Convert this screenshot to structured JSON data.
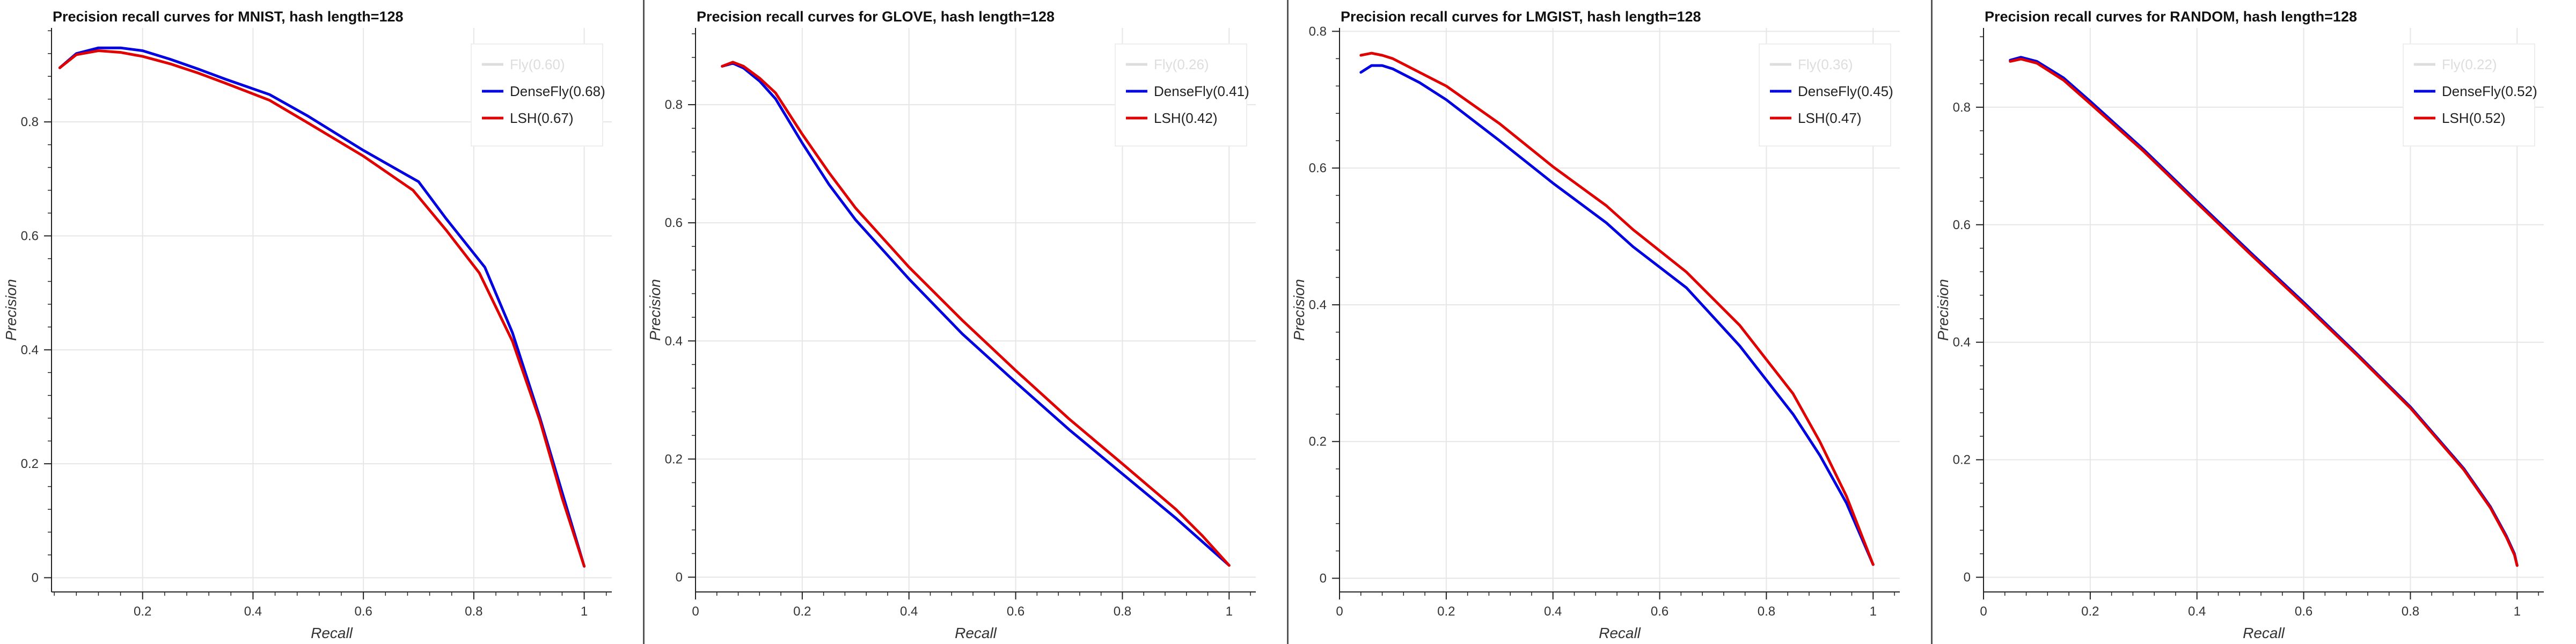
{
  "colors": {
    "densefly": "#0000e0",
    "lsh": "#e00000",
    "fly": "#dddddd",
    "grid": "#e6e6e6",
    "axis": "#222222",
    "divider": "#555555"
  },
  "chart_data": [
    {
      "type": "line",
      "title": "Precision recall curves for MNIST, hash length=128",
      "xlabel": "Recall",
      "ylabel": "Precision",
      "xlim": [
        0.035,
        1.05
      ],
      "ylim": [
        -0.025,
        0.965
      ],
      "xticks": [
        0.2,
        0.4,
        0.6,
        0.8,
        1.0
      ],
      "xtick_labels": [
        "0.2",
        "0.4",
        "0.6",
        "0.8",
        "1"
      ],
      "yticks": [
        0,
        0.2,
        0.4,
        0.6,
        0.8
      ],
      "ytick_labels": [
        "0",
        "0.2",
        "0.4",
        "0.6",
        "0.8"
      ],
      "grid": true,
      "legend_position": "top-right",
      "series": [
        {
          "name": "Fly(0.60)",
          "key": "fly",
          "x": [],
          "y": []
        },
        {
          "name": "DenseFly(0.68)",
          "key": "densefly",
          "x": [
            0.05,
            0.08,
            0.12,
            0.16,
            0.2,
            0.25,
            0.3,
            0.35,
            0.43,
            0.5,
            0.6,
            0.7,
            0.75,
            0.82,
            0.87,
            0.92,
            0.96,
            1.0
          ],
          "y": [
            0.895,
            0.92,
            0.93,
            0.93,
            0.925,
            0.91,
            0.893,
            0.875,
            0.848,
            0.81,
            0.75,
            0.695,
            0.63,
            0.545,
            0.43,
            0.28,
            0.15,
            0.02
          ]
        },
        {
          "name": "LSH(0.67)",
          "key": "lsh",
          "x": [
            0.05,
            0.08,
            0.12,
            0.16,
            0.2,
            0.25,
            0.3,
            0.35,
            0.43,
            0.5,
            0.6,
            0.69,
            0.75,
            0.81,
            0.87,
            0.92,
            0.96,
            1.0
          ],
          "y": [
            0.895,
            0.918,
            0.925,
            0.922,
            0.915,
            0.902,
            0.886,
            0.868,
            0.838,
            0.798,
            0.74,
            0.68,
            0.61,
            0.535,
            0.415,
            0.275,
            0.14,
            0.02
          ]
        }
      ]
    },
    {
      "type": "line",
      "title": "Precision recall curves for GLOVE, hash length=128",
      "xlabel": "Recall",
      "ylabel": "Precision",
      "xlim": [
        0.0,
        1.05
      ],
      "ylim": [
        -0.025,
        0.93
      ],
      "xticks": [
        0,
        0.2,
        0.4,
        0.6,
        0.8,
        1.0
      ],
      "xtick_labels": [
        "0",
        "0.2",
        "0.4",
        "0.6",
        "0.8",
        "1"
      ],
      "yticks": [
        0,
        0.2,
        0.4,
        0.6,
        0.8
      ],
      "ytick_labels": [
        "0",
        "0.2",
        "0.4",
        "0.6",
        "0.8"
      ],
      "grid": true,
      "legend_position": "top-right",
      "series": [
        {
          "name": "Fly(0.26)",
          "key": "fly",
          "x": [],
          "y": []
        },
        {
          "name": "DenseFly(0.41)",
          "key": "densefly",
          "x": [
            0.05,
            0.07,
            0.09,
            0.12,
            0.15,
            0.2,
            0.25,
            0.3,
            0.4,
            0.5,
            0.6,
            0.7,
            0.8,
            0.9,
            0.95,
            1.0
          ],
          "y": [
            0.865,
            0.87,
            0.862,
            0.84,
            0.81,
            0.735,
            0.665,
            0.605,
            0.505,
            0.412,
            0.33,
            0.25,
            0.175,
            0.1,
            0.06,
            0.02
          ]
        },
        {
          "name": "LSH(0.42)",
          "key": "lsh",
          "x": [
            0.05,
            0.07,
            0.09,
            0.12,
            0.15,
            0.2,
            0.25,
            0.3,
            0.4,
            0.5,
            0.6,
            0.7,
            0.8,
            0.9,
            0.95,
            1.0
          ],
          "y": [
            0.865,
            0.872,
            0.865,
            0.845,
            0.82,
            0.75,
            0.685,
            0.625,
            0.525,
            0.435,
            0.35,
            0.268,
            0.192,
            0.115,
            0.07,
            0.02
          ]
        }
      ]
    },
    {
      "type": "line",
      "title": "Precision recall curves for LMGIST, hash length=128",
      "xlabel": "Recall",
      "ylabel": "Precision",
      "xlim": [
        0.0,
        1.05
      ],
      "ylim": [
        -0.02,
        0.805
      ],
      "xticks": [
        0,
        0.2,
        0.4,
        0.6,
        0.8,
        1.0
      ],
      "xtick_labels": [
        "0",
        "0.2",
        "0.4",
        "0.6",
        "0.8",
        "1"
      ],
      "yticks": [
        0,
        0.2,
        0.4,
        0.6,
        0.8
      ],
      "ytick_labels": [
        "0",
        "0.2",
        "0.4",
        "0.6",
        "0.8"
      ],
      "grid": true,
      "legend_position": "top-right",
      "series": [
        {
          "name": "Fly(0.36)",
          "key": "fly",
          "x": [],
          "y": []
        },
        {
          "name": "DenseFly(0.45)",
          "key": "densefly",
          "x": [
            0.04,
            0.06,
            0.08,
            0.1,
            0.15,
            0.2,
            0.3,
            0.4,
            0.5,
            0.55,
            0.65,
            0.75,
            0.85,
            0.9,
            0.95,
            1.0
          ],
          "y": [
            0.74,
            0.75,
            0.75,
            0.745,
            0.725,
            0.7,
            0.64,
            0.578,
            0.52,
            0.485,
            0.425,
            0.34,
            0.24,
            0.18,
            0.11,
            0.02
          ]
        },
        {
          "name": "LSH(0.47)",
          "key": "lsh",
          "x": [
            0.04,
            0.06,
            0.08,
            0.1,
            0.15,
            0.2,
            0.3,
            0.4,
            0.5,
            0.55,
            0.65,
            0.75,
            0.85,
            0.9,
            0.95,
            1.0
          ],
          "y": [
            0.765,
            0.768,
            0.765,
            0.76,
            0.74,
            0.72,
            0.665,
            0.602,
            0.545,
            0.51,
            0.448,
            0.37,
            0.27,
            0.2,
            0.12,
            0.02
          ]
        }
      ]
    },
    {
      "type": "line",
      "title": "Precision recall curves for RANDOM, hash length=128",
      "xlabel": "Recall",
      "ylabel": "Precision",
      "xlim": [
        0.0,
        1.05
      ],
      "ylim": [
        -0.025,
        0.935
      ],
      "xticks": [
        0,
        0.2,
        0.4,
        0.6,
        0.8,
        1.0
      ],
      "xtick_labels": [
        "0",
        "0.2",
        "0.4",
        "0.6",
        "0.8",
        "1"
      ],
      "yticks": [
        0,
        0.2,
        0.4,
        0.6,
        0.8
      ],
      "ytick_labels": [
        "0",
        "0.2",
        "0.4",
        "0.6",
        "0.8"
      ],
      "grid": true,
      "legend_position": "top-right",
      "series": [
        {
          "name": "Fly(0.22)",
          "key": "fly",
          "x": [],
          "y": []
        },
        {
          "name": "DenseFly(0.52)",
          "key": "densefly",
          "x": [
            0.05,
            0.07,
            0.1,
            0.15,
            0.2,
            0.3,
            0.4,
            0.5,
            0.6,
            0.7,
            0.8,
            0.9,
            0.95,
            0.98,
            0.995,
            1.0
          ],
          "y": [
            0.88,
            0.885,
            0.878,
            0.85,
            0.81,
            0.728,
            0.64,
            0.553,
            0.468,
            0.38,
            0.29,
            0.185,
            0.12,
            0.07,
            0.04,
            0.02
          ]
        },
        {
          "name": "LSH(0.52)",
          "key": "lsh",
          "x": [
            0.05,
            0.07,
            0.1,
            0.15,
            0.2,
            0.3,
            0.4,
            0.5,
            0.6,
            0.7,
            0.8,
            0.9,
            0.95,
            0.98,
            0.995,
            1.0
          ],
          "y": [
            0.878,
            0.882,
            0.875,
            0.846,
            0.806,
            0.725,
            0.637,
            0.55,
            0.465,
            0.378,
            0.288,
            0.183,
            0.118,
            0.068,
            0.038,
            0.02
          ]
        }
      ]
    }
  ]
}
